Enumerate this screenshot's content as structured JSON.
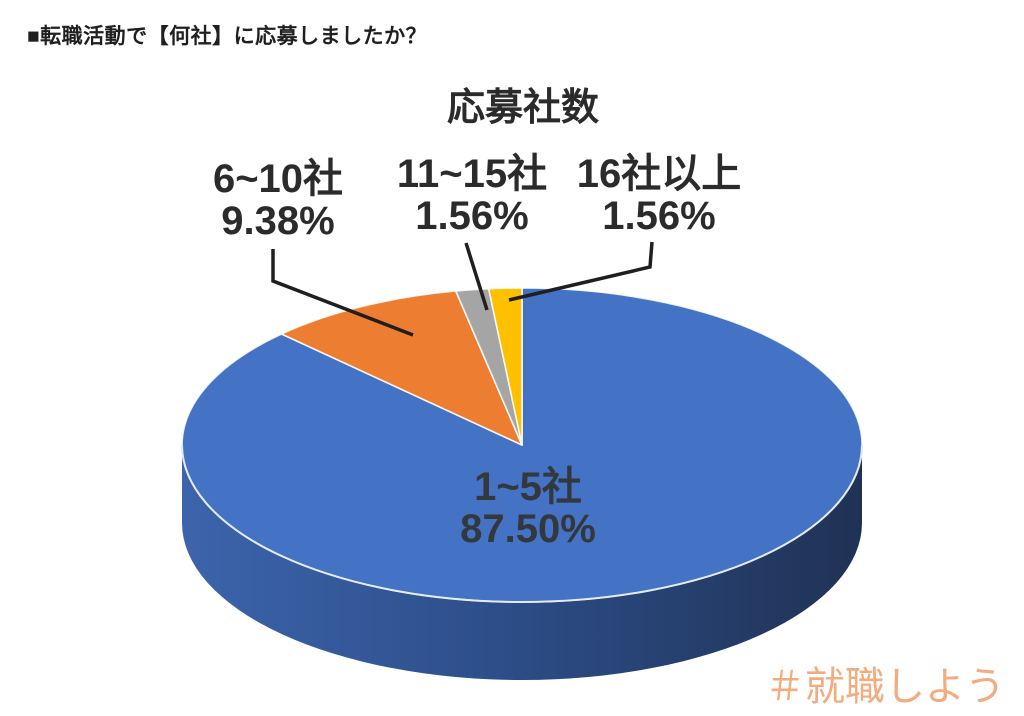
{
  "header": {
    "question": "■転職活動で【何社】に応募しましたか？"
  },
  "chart_data": {
    "type": "pie",
    "style": "3d",
    "title": "応募社数",
    "start_angle_deg": 0,
    "direction": "clockwise",
    "legend": "none",
    "slices": [
      {
        "label": "1~5社",
        "value": 87.5,
        "display": "87.50%",
        "color": "#4472C4",
        "label_position": "inside"
      },
      {
        "label": "6~10社",
        "value": 9.38,
        "display": "9.38%",
        "color": "#ED7D31",
        "label_position": "callout"
      },
      {
        "label": "11~15社",
        "value": 1.56,
        "display": "1.56%",
        "color": "#A5A5A5",
        "label_position": "callout"
      },
      {
        "label": "16社以上",
        "value": 1.56,
        "display": "1.56%",
        "color": "#FFC000",
        "label_position": "callout"
      }
    ],
    "slice_border_color": "#FFFFFF",
    "depth_gradient": {
      "left": "#3C64AC",
      "mid": "#2C4C86",
      "right": "#203254"
    },
    "rim_highlight_color": "#E4EBF6",
    "leader_line_color": "#1F1F1F",
    "label_text_color": "#2B2B2B"
  },
  "watermark": {
    "text": "＃就職しよう",
    "color": "#F3AB80"
  }
}
